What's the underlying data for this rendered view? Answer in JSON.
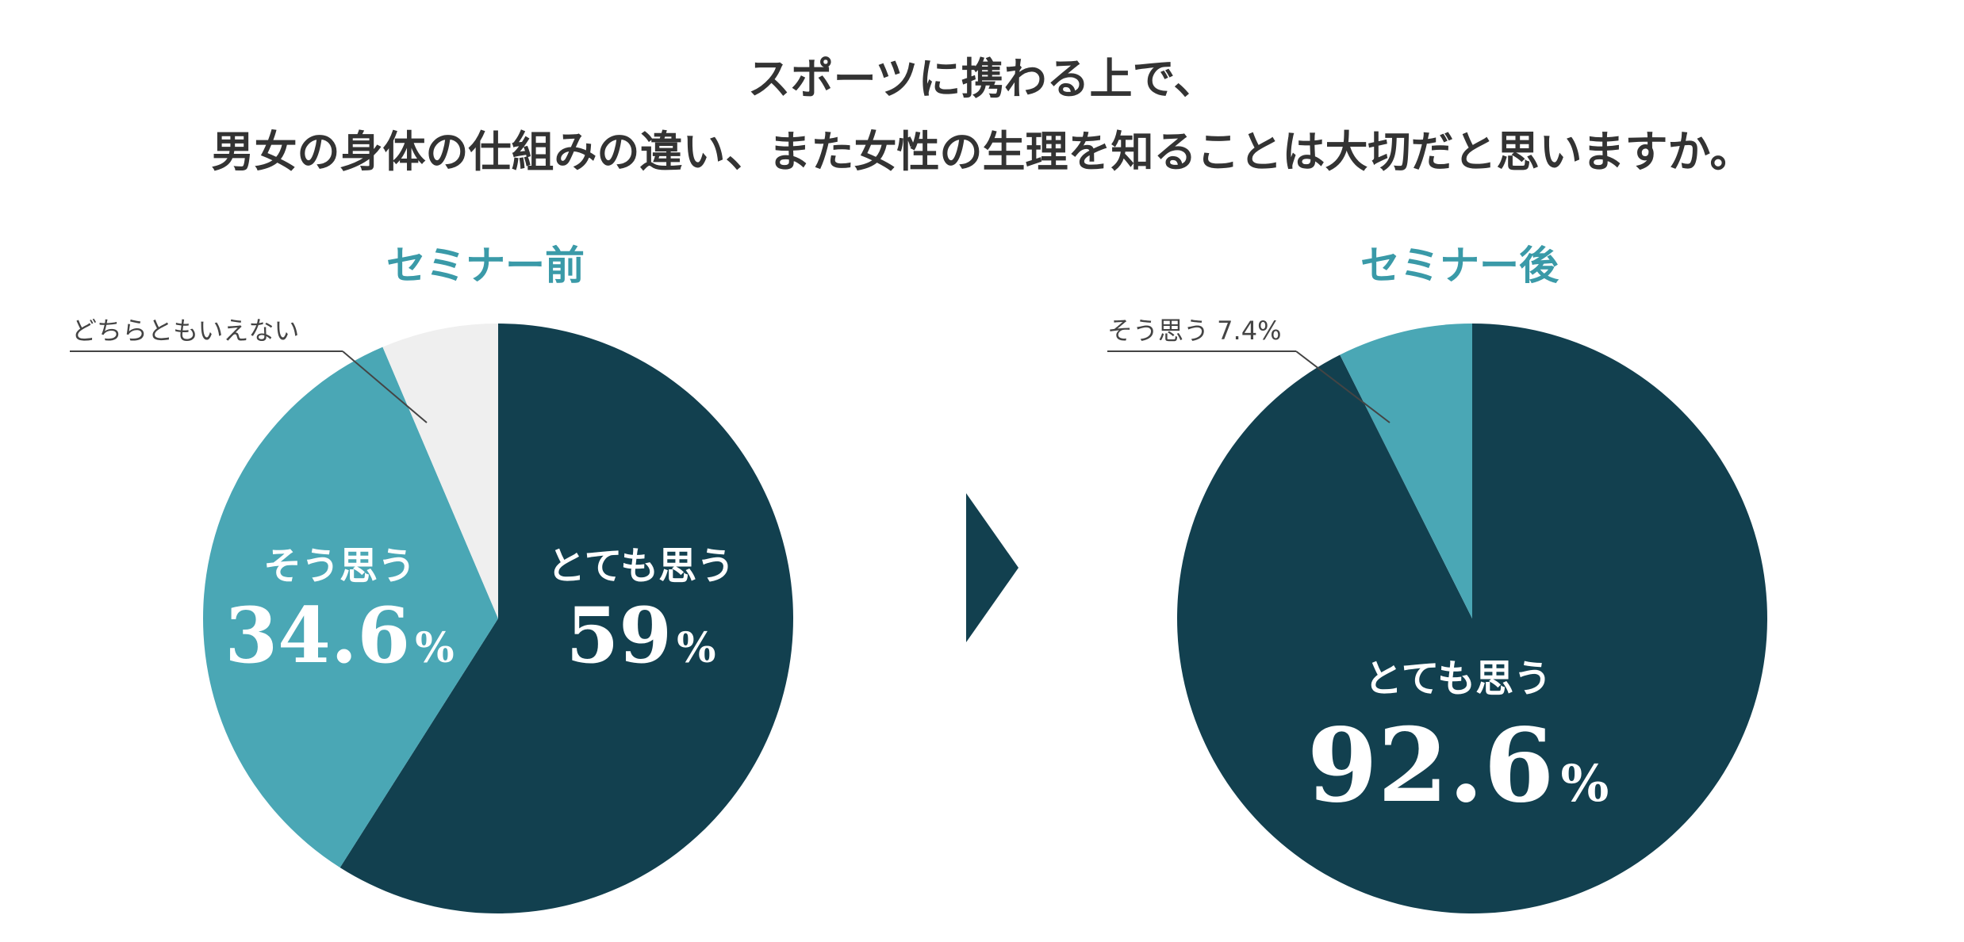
{
  "page_title": {
    "line1": "スポーツに携わる上で、",
    "line2": "男女の身体の仕組みの違い、また女性の生理を知ることは大切だと思いますか。"
  },
  "colors": {
    "dark": "#12404F",
    "teal": "#4AA7B5",
    "light": "#EFEFEF",
    "accent_title": "#3A9AA8",
    "arrow": "#12404F"
  },
  "arrow": {
    "icon": "right-triangle-icon"
  },
  "chart_data": [
    {
      "type": "pie",
      "title": "セミナー前",
      "slices": [
        {
          "label": "とても思う",
          "value": 59,
          "value_text": "59",
          "unit": "%",
          "color": "#12404F"
        },
        {
          "label": "そう思う",
          "value": 34.6,
          "value_text": "34.6",
          "unit": "%",
          "color": "#4AA7B5"
        },
        {
          "label": "どちらともいえない",
          "value": 6.4,
          "value_text": "",
          "unit": "",
          "color": "#EFEFEF"
        }
      ]
    },
    {
      "type": "pie",
      "title": "セミナー後",
      "slices": [
        {
          "label": "とても思う",
          "value": 92.6,
          "value_text": "92.6",
          "unit": "%",
          "color": "#12404F"
        },
        {
          "label": "そう思う 7.4%",
          "value": 7.4,
          "value_text": "",
          "unit": "",
          "color": "#4AA7B5"
        }
      ]
    }
  ]
}
